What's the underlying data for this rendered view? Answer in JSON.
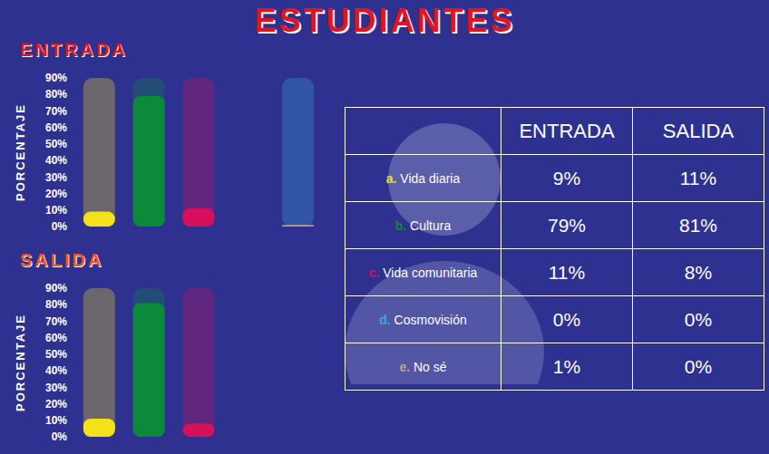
{
  "title": "ESTUDIANTES",
  "chart_data": [
    {
      "type": "bar",
      "title": "ENTRADA",
      "ylabel": "PORCENTAJE",
      "categories": [
        null,
        null,
        null,
        null,
        null
      ],
      "values": [
        9,
        79,
        11,
        0,
        1
      ],
      "colors": [
        "#f5e11a",
        "#0a8a3a",
        "#d6105a",
        "#3aa5e0",
        "#c8a070"
      ],
      "ylim": [
        0,
        90
      ],
      "yticks": [
        {
          "value": 0,
          "label": "0%"
        },
        {
          "value": 10,
          "label": "10%"
        },
        {
          "value": 20,
          "label": "20%"
        },
        {
          "value": 30,
          "label": "30%"
        },
        {
          "value": 40,
          "label": "40%"
        },
        {
          "value": 50,
          "label": "50%"
        },
        {
          "value": 60,
          "label": "60%"
        },
        {
          "value": 70,
          "label": "70%"
        },
        {
          "value": 80,
          "label": "80%"
        },
        {
          "value": 90,
          "label": "90%"
        }
      ],
      "grid": false,
      "tick_labels": "y"
    },
    {
      "type": "bar",
      "title": "SALIDA",
      "ylabel": "PORCENTAJE",
      "categories": [
        null,
        null,
        null,
        null,
        null
      ],
      "values": [
        11,
        81,
        8,
        0,
        0
      ],
      "colors": [
        "#f5e11a",
        "#0a8a3a",
        "#d6105a",
        "#3aa5e0",
        "#c8a070"
      ],
      "ylim": [
        0,
        90
      ],
      "yticks": [
        {
          "value": 0,
          "label": "0%"
        },
        {
          "value": 10,
          "label": "10%"
        },
        {
          "value": 20,
          "label": "20%"
        },
        {
          "value": 30,
          "label": "30%"
        },
        {
          "value": 40,
          "label": "40%"
        },
        {
          "value": 50,
          "label": "50%"
        },
        {
          "value": 60,
          "label": "60%"
        },
        {
          "value": 70,
          "label": "70%"
        },
        {
          "value": 80,
          "label": "80%"
        },
        {
          "value": 90,
          "label": "90%"
        }
      ],
      "grid": false,
      "tick_labels": "y"
    }
  ],
  "table": {
    "header": [
      "ENTRADA",
      "SALIDA"
    ],
    "rows": [
      {
        "letter": "a.",
        "label": "Vida diaria",
        "color": "#f5e11a",
        "entrada": "9%",
        "salida": "11%"
      },
      {
        "letter": "b.",
        "label": "Cultura",
        "color": "#0a8a3a",
        "entrada": "79%",
        "salida": "81%"
      },
      {
        "letter": "c.",
        "label": "Vida comunitaria",
        "color": "#d6105a",
        "entrada": "11%",
        "salida": "8%"
      },
      {
        "letter": "d.",
        "label": "Cosmovisión",
        "color": "#3aa5e0",
        "entrada": "0%",
        "salida": "0%"
      },
      {
        "letter": "e.",
        "label": "No sé",
        "color": "#c8a070",
        "entrada": "1%",
        "salida": "0%"
      }
    ]
  }
}
